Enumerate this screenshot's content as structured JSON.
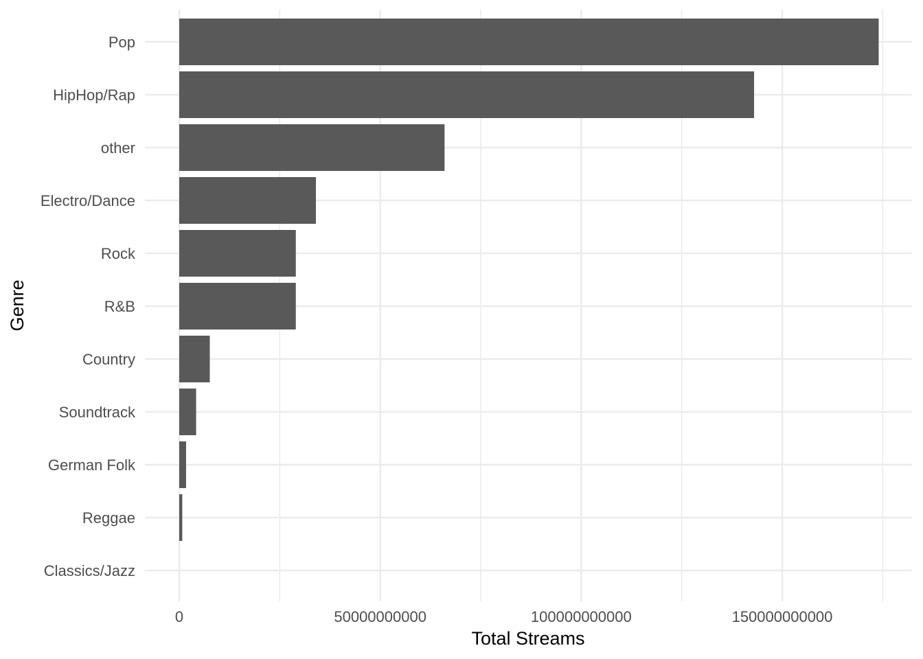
{
  "chart_data": {
    "type": "bar",
    "orientation": "horizontal",
    "categories": [
      "Pop",
      "HipHop/Rap",
      "other",
      "Electro/Dance",
      "Rock",
      "R&B",
      "Country",
      "Soundtrack",
      "German Folk",
      "Reggae",
      "Classics/Jazz"
    ],
    "values": [
      174000000000,
      143000000000,
      66000000000,
      34000000000,
      29000000000,
      29000000000,
      7600000000,
      4200000000,
      1700000000,
      750000000,
      0
    ],
    "xlabel": "Total Streams",
    "ylabel": "Genre",
    "x_ticks": [
      0,
      50000000000,
      100000000000,
      150000000000
    ],
    "x_tick_labels": [
      "0",
      "50000000000",
      "100000000000",
      "150000000000"
    ],
    "xlim": [
      -9000000000,
      183000000000
    ],
    "grid": true,
    "bar_color": "#595959",
    "grid_color": "#ebebeb",
    "background_color": "#ffffff"
  }
}
